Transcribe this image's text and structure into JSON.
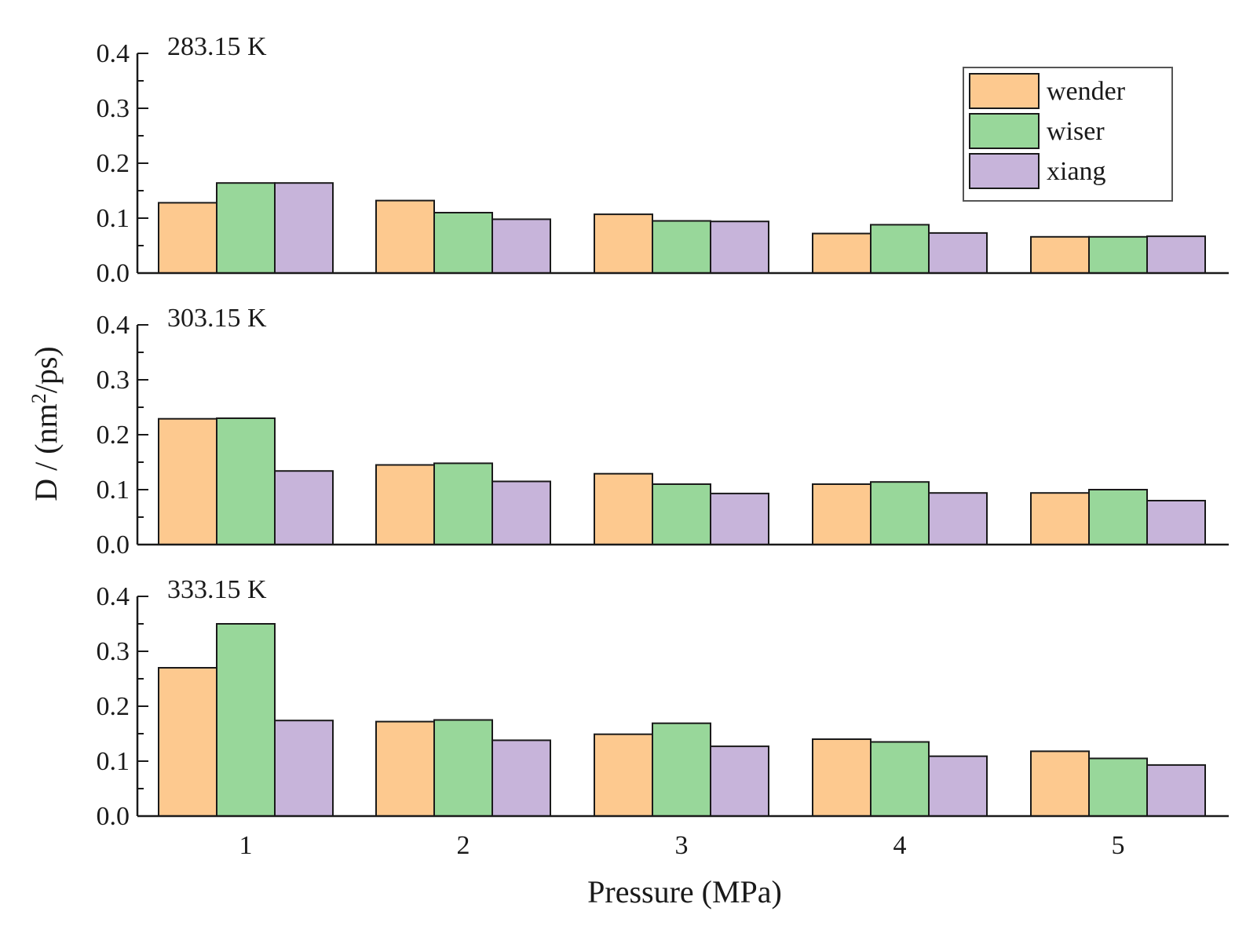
{
  "chart_data": {
    "type": "bar",
    "xlabel": "Pressure (MPa)",
    "ylabel": "D / (nm²/ps)",
    "ylabel_main": "D / (nm",
    "ylabel_sup": "2",
    "ylabel_tail": "/ps)",
    "categories": [
      "1",
      "2",
      "3",
      "4",
      "5"
    ],
    "ylim": [
      0,
      0.4
    ],
    "yticks": [
      "0.0",
      "0.1",
      "0.2",
      "0.3",
      "0.4"
    ],
    "legend": {
      "placement": "top-right",
      "entries": [
        "wender",
        "wiser",
        "xiang"
      ]
    },
    "colors": {
      "wender": "#fdc98f",
      "wiser": "#98d79a",
      "xiang": "#c7b4da",
      "edge": "#1a1a1a"
    },
    "panels": [
      {
        "title": "283.15 K",
        "series": [
          {
            "name": "wender",
            "values": [
              0.128,
              0.132,
              0.107,
              0.072,
              0.066
            ]
          },
          {
            "name": "wiser",
            "values": [
              0.164,
              0.11,
              0.095,
              0.088,
              0.066
            ]
          },
          {
            "name": "xiang",
            "values": [
              0.164,
              0.098,
              0.094,
              0.073,
              0.067
            ]
          }
        ]
      },
      {
        "title": "303.15 K",
        "series": [
          {
            "name": "wender",
            "values": [
              0.229,
              0.145,
              0.129,
              0.11,
              0.094
            ]
          },
          {
            "name": "wiser",
            "values": [
              0.23,
              0.148,
              0.11,
              0.114,
              0.1
            ]
          },
          {
            "name": "xiang",
            "values": [
              0.134,
              0.115,
              0.093,
              0.094,
              0.08
            ]
          }
        ]
      },
      {
        "title": "333.15 K",
        "series": [
          {
            "name": "wender",
            "values": [
              0.27,
              0.172,
              0.149,
              0.14,
              0.118
            ]
          },
          {
            "name": "wiser",
            "values": [
              0.35,
              0.175,
              0.169,
              0.135,
              0.105
            ]
          },
          {
            "name": "xiang",
            "values": [
              0.174,
              0.138,
              0.127,
              0.109,
              0.093
            ]
          }
        ]
      }
    ]
  }
}
